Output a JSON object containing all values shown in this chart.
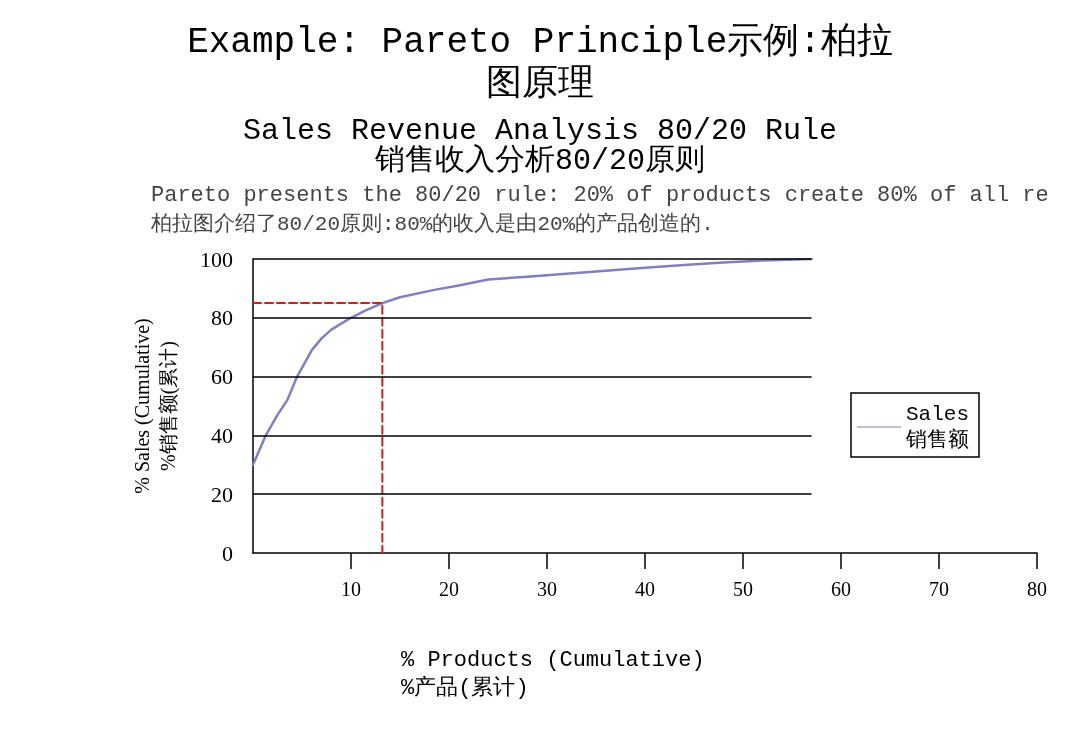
{
  "chart_data": {
    "type": "line",
    "title": "Example: Pareto Principle示例:柏拉图原理",
    "subtitle": "Sales Revenue Analysis 80/20 Rule\n销售收入分析80/20原则",
    "annotations": [
      "Pareto presents the 80/20 rule: 20% of products create 80% of all re",
      "柏拉图介绍了80/20原则:80%的收入是由20%的产品创造的."
    ],
    "xlabel": "% Products (Cumulative)\n%产品(累计)",
    "ylabel": "% Sales (Cumulative)\n%销售额(累计)",
    "xlim": [
      0,
      80
    ],
    "xticks": [
      10,
      20,
      30,
      40,
      50,
      60,
      70,
      80
    ],
    "ylim": [
      0,
      100
    ],
    "yticks": [
      0,
      20,
      40,
      60,
      80,
      100
    ],
    "grid": "y",
    "legend": "right",
    "marker": "none",
    "series": [
      {
        "name": "Sales\n销售额",
        "color": "#8080c0",
        "x": [
          0,
          1.3,
          2.5,
          3.5,
          4.5,
          5,
          6,
          7,
          8,
          9,
          10,
          11.5,
          13.2,
          15,
          18.5,
          21,
          24,
          28,
          32,
          36,
          40,
          44,
          48,
          52,
          57
        ],
        "values": [
          30,
          40,
          47,
          52,
          60,
          63,
          69,
          73,
          76,
          78,
          80,
          82.5,
          85,
          87,
          89.5,
          91,
          93,
          94,
          95,
          96,
          97,
          98,
          98.8,
          99.5,
          100
        ]
      },
      {
        "color": "#cc2020",
        "line_style": "dashed",
        "x": [
          0,
          13.2,
          13.2
        ],
        "values": [
          85,
          85,
          0
        ]
      }
    ]
  }
}
